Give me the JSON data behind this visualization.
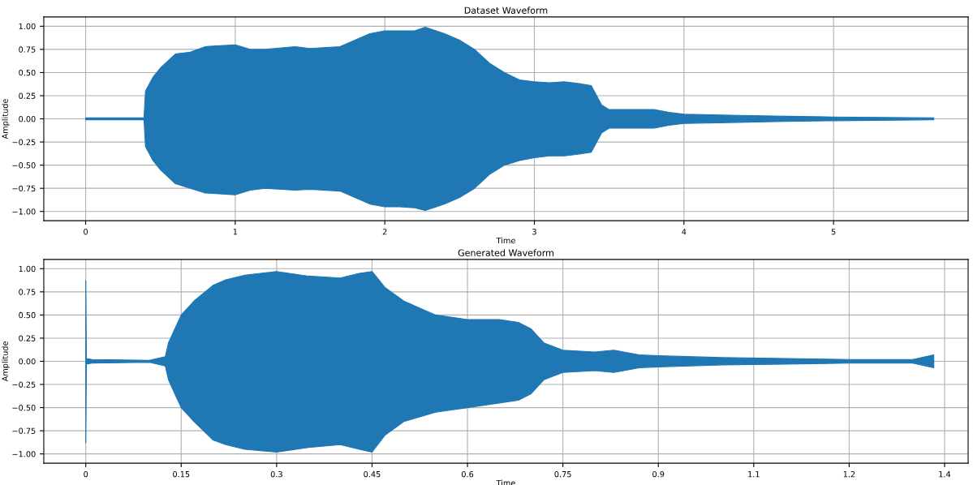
{
  "chart_data": [
    {
      "type": "area",
      "title": "Dataset Waveform",
      "xlabel": "Time",
      "ylabel": "Amplitude",
      "grid": true,
      "xlim": [
        -0.28,
        5.9
      ],
      "xticks": [
        0,
        1,
        2,
        3,
        4,
        5
      ],
      "ylim": [
        -1.1,
        1.1
      ],
      "yticks": [
        {
          "value": -1,
          "label": "−1.00"
        },
        {
          "value": -0.75,
          "label": "−0.75"
        },
        {
          "value": -0.5,
          "label": "−0.50"
        },
        {
          "value": -0.25,
          "label": "−0.25"
        },
        {
          "value": 0,
          "label": "0.00"
        },
        {
          "value": 0.25,
          "label": "0.25"
        },
        {
          "value": 0.5,
          "label": "0.50"
        },
        {
          "value": 0.75,
          "label": "0.75"
        },
        {
          "value": 1,
          "label": "1.00"
        }
      ],
      "series": [
        {
          "color": "#1f77b4",
          "x": [
            0,
            0.39,
            0.4,
            0.45,
            0.5,
            0.6,
            0.7,
            0.8,
            1.0,
            1.1,
            1.2,
            1.4,
            1.5,
            1.7,
            1.8,
            1.9,
            2.0,
            2.1,
            2.2,
            2.27,
            2.4,
            2.5,
            2.6,
            2.7,
            2.8,
            2.9,
            3.0,
            3.1,
            3.2,
            3.3,
            3.38,
            3.45,
            3.5,
            3.7,
            3.8,
            3.9,
            4.0,
            4.3,
            4.6,
            5.0,
            5.67
          ],
          "values": [
            0.01,
            0.01,
            0.3,
            0.45,
            0.55,
            0.7,
            0.72,
            0.78,
            0.8,
            0.75,
            0.75,
            0.78,
            0.76,
            0.78,
            0.85,
            0.92,
            0.95,
            0.95,
            0.95,
            0.99,
            0.92,
            0.85,
            0.75,
            0.6,
            0.5,
            0.42,
            0.4,
            0.39,
            0.4,
            0.38,
            0.36,
            0.15,
            0.1,
            0.1,
            0.1,
            0.07,
            0.05,
            0.04,
            0.03,
            0.02,
            0.01
          ]
        },
        {
          "color": "#1f77b4",
          "x": [
            0,
            0.39,
            0.4,
            0.45,
            0.5,
            0.6,
            0.7,
            0.8,
            1.0,
            1.1,
            1.2,
            1.4,
            1.5,
            1.7,
            1.8,
            1.9,
            2.0,
            2.1,
            2.2,
            2.27,
            2.4,
            2.5,
            2.6,
            2.7,
            2.8,
            2.9,
            3.0,
            3.1,
            3.2,
            3.3,
            3.38,
            3.45,
            3.5,
            3.7,
            3.8,
            3.9,
            4.0,
            4.3,
            4.6,
            5.0,
            5.67
          ],
          "values": [
            -0.01,
            -0.01,
            -0.3,
            -0.45,
            -0.55,
            -0.7,
            -0.75,
            -0.8,
            -0.82,
            -0.77,
            -0.75,
            -0.77,
            -0.76,
            -0.78,
            -0.85,
            -0.92,
            -0.95,
            -0.95,
            -0.96,
            -0.99,
            -0.92,
            -0.85,
            -0.75,
            -0.6,
            -0.5,
            -0.45,
            -0.42,
            -0.4,
            -0.4,
            -0.38,
            -0.36,
            -0.15,
            -0.1,
            -0.1,
            -0.1,
            -0.07,
            -0.05,
            -0.04,
            -0.03,
            -0.02,
            -0.01
          ]
        }
      ]
    },
    {
      "type": "area",
      "title": "Generated Waveform",
      "xlabel": "Time",
      "ylabel": "Amplitude",
      "grid": true,
      "xlim": [
        -0.066,
        1.387
      ],
      "xticks": [
        0,
        0.15,
        0.3,
        0.45,
        0.6,
        0.75,
        0.9,
        {
          "value": 1.05,
          "label": "1.1"
        },
        1.2,
        {
          "value": 1.35,
          "label": "1.4"
        }
      ],
      "ylim": [
        -1.1,
        1.1
      ],
      "yticks": [
        {
          "value": -1,
          "label": "−1.00"
        },
        {
          "value": -0.75,
          "label": "−0.75"
        },
        {
          "value": -0.5,
          "label": "−0.50"
        },
        {
          "value": -0.25,
          "label": "−0.25"
        },
        {
          "value": 0,
          "label": "0.00"
        },
        {
          "value": 0.25,
          "label": "0.25"
        },
        {
          "value": 0.5,
          "label": "0.50"
        },
        {
          "value": 0.75,
          "label": "0.75"
        },
        {
          "value": 1,
          "label": "1.00"
        }
      ],
      "series": [
        {
          "color": "#1f77b4",
          "x": [
            0,
            0.001,
            0.01,
            0.1,
            0.125,
            0.13,
            0.14,
            0.15,
            0.17,
            0.2,
            0.22,
            0.25,
            0.3,
            0.35,
            0.4,
            0.43,
            0.45,
            0.47,
            0.5,
            0.55,
            0.6,
            0.65,
            0.68,
            0.7,
            0.72,
            0.75,
            0.8,
            0.83,
            0.87,
            0.9,
            1.0,
            1.1,
            1.2,
            1.3,
            1.333
          ],
          "values": [
            0.87,
            0.03,
            0.02,
            0.01,
            0.05,
            0.2,
            0.35,
            0.5,
            0.65,
            0.82,
            0.88,
            0.93,
            0.97,
            0.92,
            0.9,
            0.95,
            0.97,
            0.8,
            0.65,
            0.5,
            0.45,
            0.45,
            0.42,
            0.35,
            0.2,
            0.12,
            0.1,
            0.12,
            0.07,
            0.06,
            0.04,
            0.03,
            0.02,
            0.02,
            0.07
          ]
        },
        {
          "color": "#1f77b4",
          "x": [
            0,
            0.001,
            0.01,
            0.1,
            0.125,
            0.13,
            0.14,
            0.15,
            0.17,
            0.2,
            0.22,
            0.25,
            0.3,
            0.35,
            0.4,
            0.43,
            0.45,
            0.47,
            0.5,
            0.55,
            0.6,
            0.65,
            0.68,
            0.7,
            0.72,
            0.75,
            0.8,
            0.83,
            0.87,
            0.9,
            1.0,
            1.1,
            1.2,
            1.3,
            1.333
          ],
          "values": [
            -0.88,
            -0.03,
            -0.02,
            -0.01,
            -0.05,
            -0.2,
            -0.35,
            -0.5,
            -0.65,
            -0.85,
            -0.9,
            -0.95,
            -0.98,
            -0.93,
            -0.9,
            -0.95,
            -0.98,
            -0.8,
            -0.65,
            -0.55,
            -0.5,
            -0.45,
            -0.42,
            -0.35,
            -0.2,
            -0.12,
            -0.1,
            -0.12,
            -0.07,
            -0.06,
            -0.04,
            -0.03,
            -0.02,
            -0.02,
            -0.07
          ]
        }
      ]
    }
  ]
}
